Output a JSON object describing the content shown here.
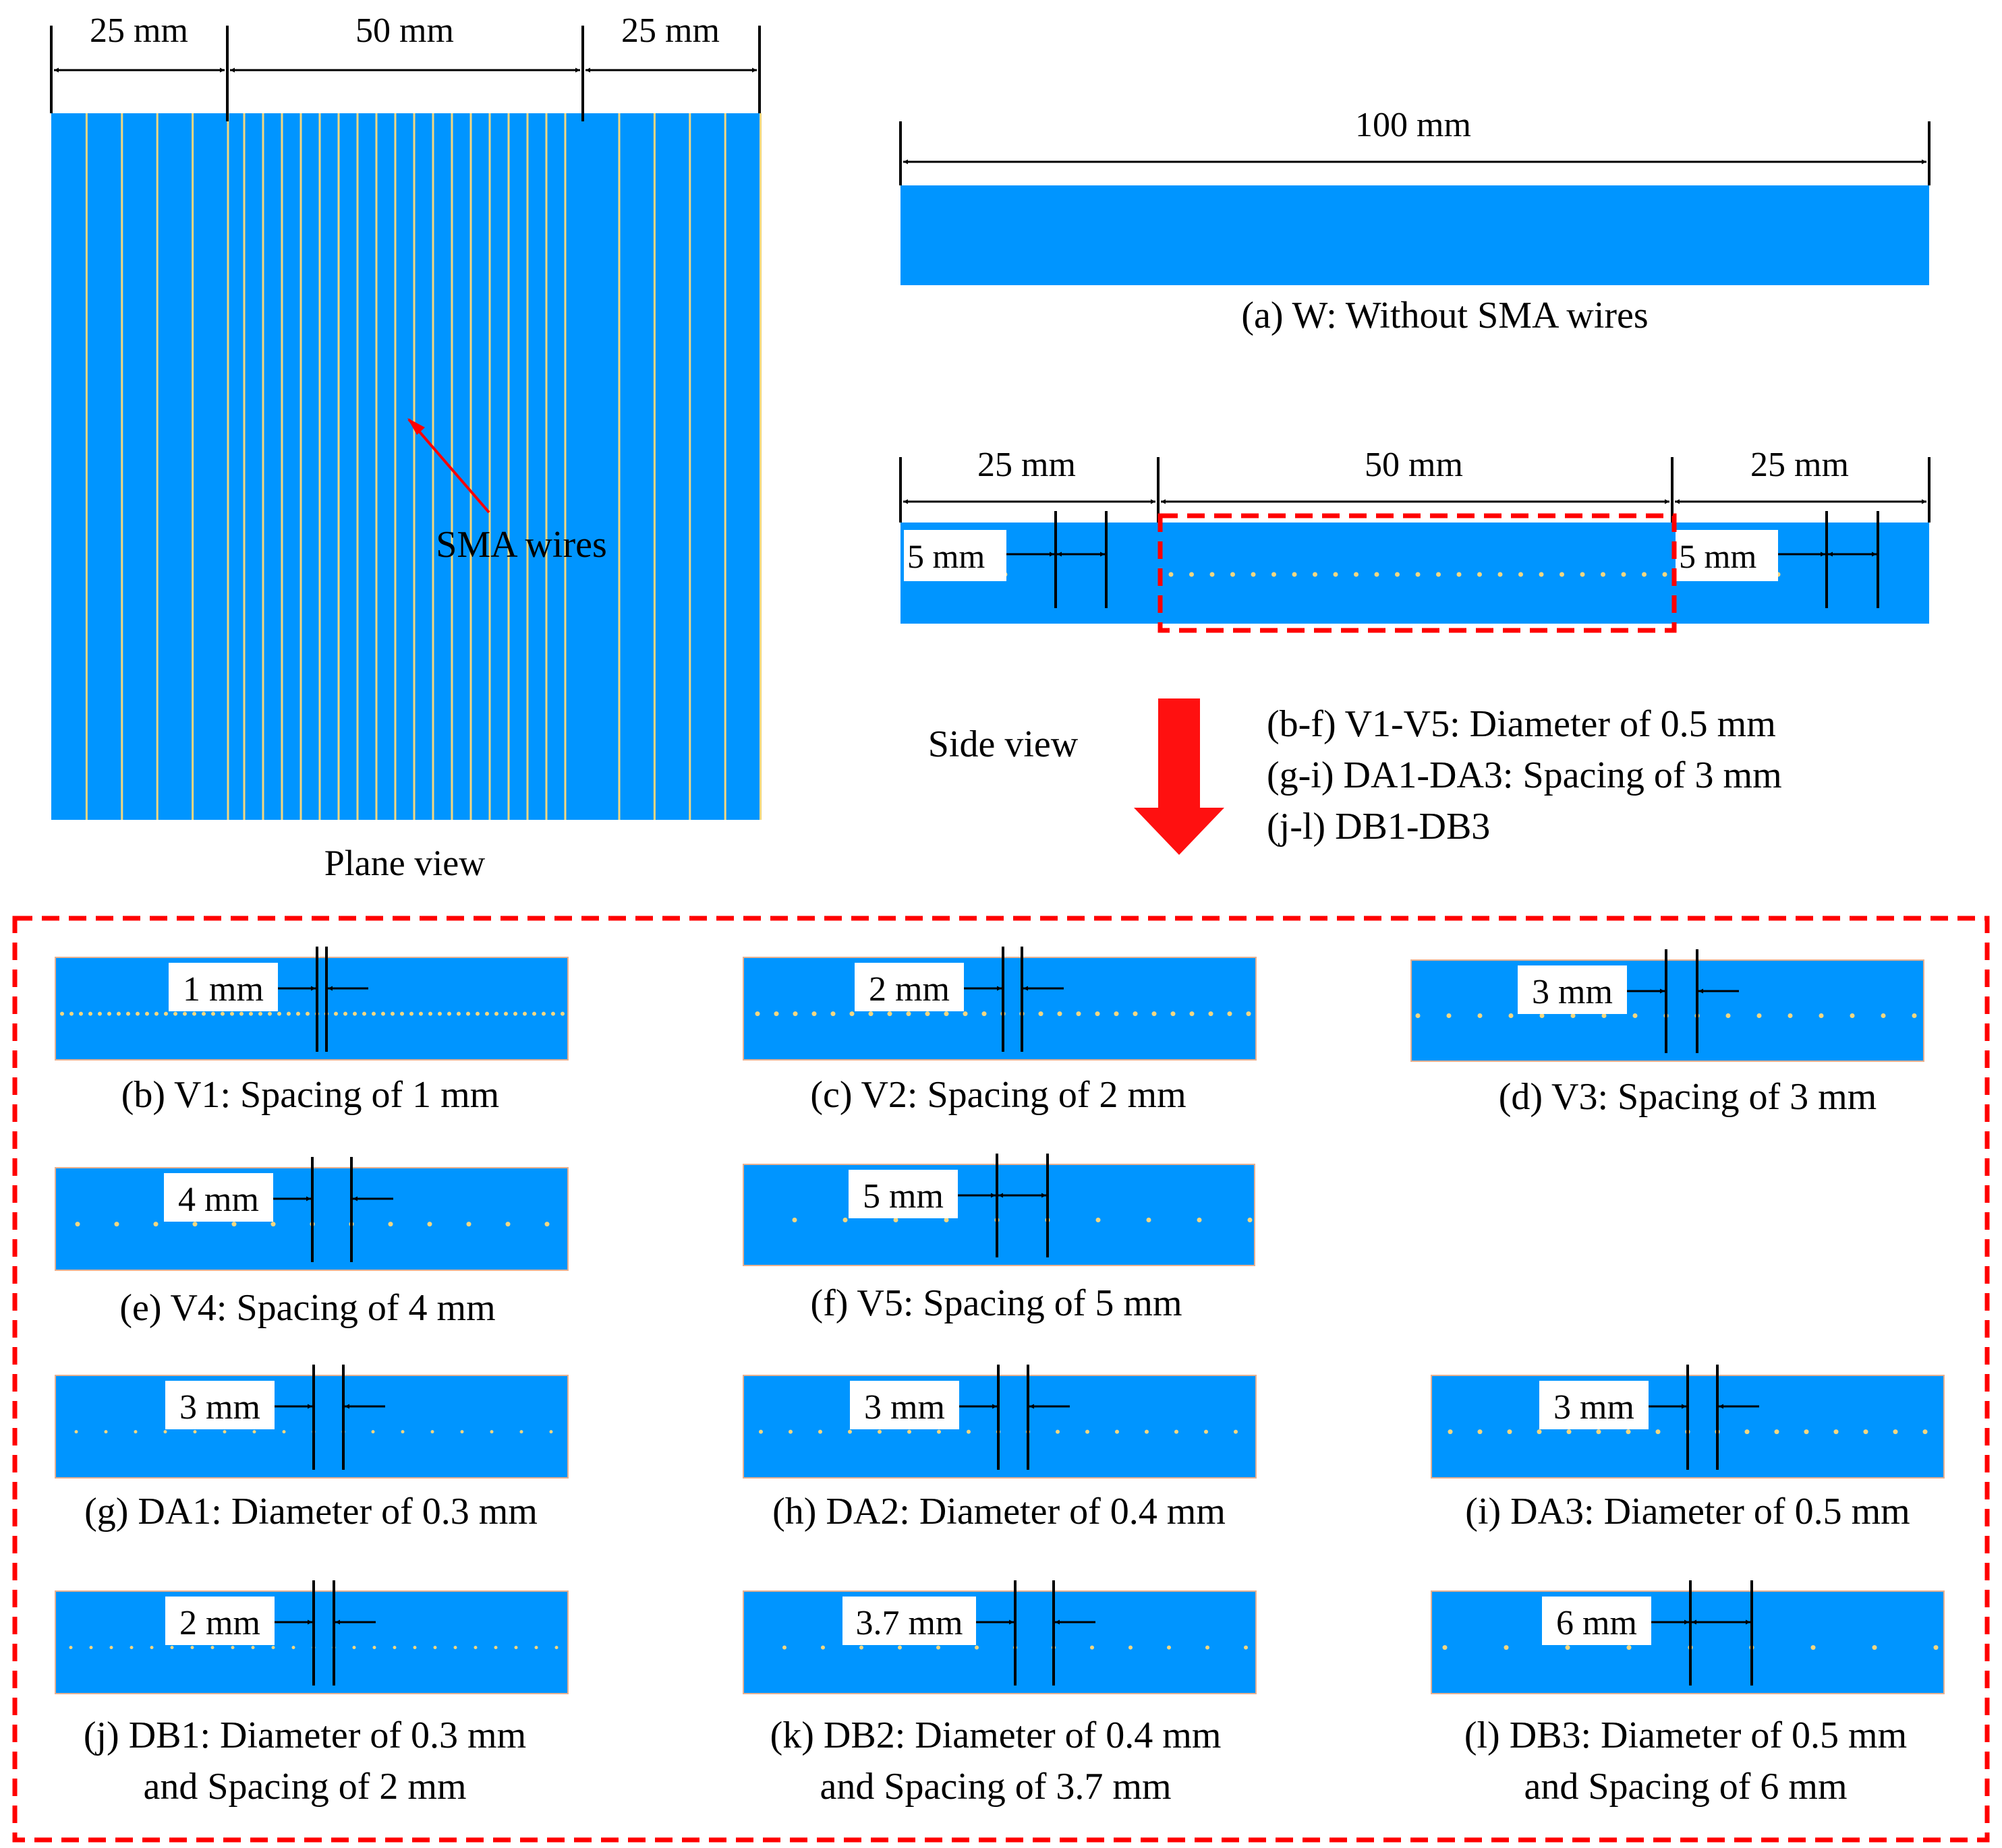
{
  "colors": {
    "plate": "#0095FF",
    "wire": "#F2D780",
    "dim": "#000000",
    "highlight": "#FF0000",
    "label_bg": "#FFFFFF"
  },
  "plane_view": {
    "dims": [
      "25 mm",
      "50 mm",
      "25 mm"
    ],
    "arrow_label": "SMA wires",
    "caption": "Plane view"
  },
  "panel_a": {
    "dim": "100 mm",
    "caption": "(a) W: Without SMA wires"
  },
  "side_view_ref": {
    "dims": [
      "25 mm",
      "50 mm",
      "25 mm"
    ],
    "left_spacing": "5 mm",
    "right_spacing": "5 mm"
  },
  "legend": {
    "title": "Side view",
    "lines": [
      "(b-f) V1-V5: Diameter of 0.5 mm",
      "(g-i) DA1-DA3: Spacing of 3 mm",
      "(j-l) DB1-DB3"
    ]
  },
  "specimens": [
    {
      "id": "b",
      "spacing_label": "1 mm",
      "spacing_mm": 1,
      "caption": [
        "(b) V1: Spacing of 1 mm"
      ]
    },
    {
      "id": "c",
      "spacing_label": "2 mm",
      "spacing_mm": 2,
      "caption": [
        "(c) V2: Spacing of 2 mm"
      ]
    },
    {
      "id": "d",
      "spacing_label": "3 mm",
      "spacing_mm": 3,
      "caption": [
        "(d) V3: Spacing of 3 mm"
      ]
    },
    {
      "id": "e",
      "spacing_label": "4 mm",
      "spacing_mm": 4,
      "caption": [
        "(e) V4: Spacing of 4 mm"
      ]
    },
    {
      "id": "f",
      "spacing_label": "5 mm",
      "spacing_mm": 5,
      "caption": [
        "(f) V5: Spacing of 5 mm"
      ]
    },
    {
      "id": "g",
      "spacing_label": "3 mm",
      "spacing_mm": 3,
      "caption": [
        "(g) DA1: Diameter of 0.3 mm"
      ]
    },
    {
      "id": "h",
      "spacing_label": "3 mm",
      "spacing_mm": 3,
      "caption": [
        "(h) DA2:  Diameter of 0.4 mm"
      ]
    },
    {
      "id": "i",
      "spacing_label": "3 mm",
      "spacing_mm": 3,
      "caption": [
        "(i) DA3:  Diameter of 0.5 mm"
      ]
    },
    {
      "id": "j",
      "spacing_label": "2 mm",
      "spacing_mm": 2,
      "caption": [
        "(j) DB1: Diameter of 0.3 mm",
        "and Spacing of 2 mm"
      ]
    },
    {
      "id": "k",
      "spacing_label": "3.7 mm",
      "spacing_mm": 3.7,
      "caption": [
        "(k) DB2: Diameter of 0.4 mm",
        "and Spacing of 3.7 mm"
      ]
    },
    {
      "id": "l",
      "spacing_label": "6 mm",
      "spacing_mm": 6,
      "caption": [
        "(l) DB3: Diameter of 0.5 mm",
        "and Spacing of 6 mm"
      ]
    }
  ]
}
